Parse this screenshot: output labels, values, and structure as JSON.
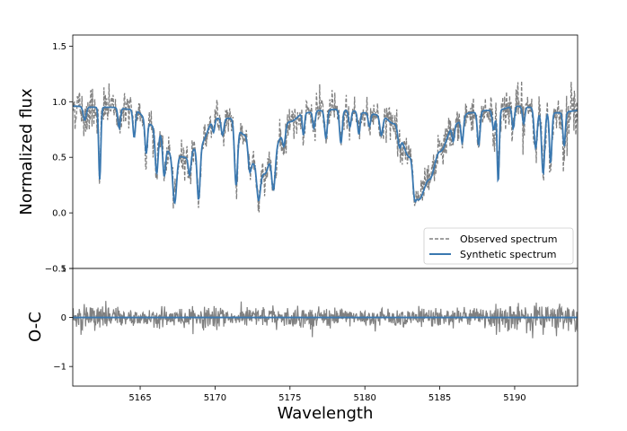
{
  "chart_data": [
    {
      "type": "line",
      "panel": "top",
      "ylabel": "Normalized flux",
      "xlim": [
        5160.5,
        5194.2
      ],
      "ylim": [
        -0.5,
        1.6
      ],
      "yticks": [
        -0.5,
        0.0,
        0.5,
        1.0,
        1.5
      ],
      "ytick_labels": [
        "−0.5",
        "0.0",
        "0.5",
        "1.0",
        "1.5"
      ],
      "legend": {
        "position": "lower-right",
        "entries": [
          {
            "label": "Observed spectrum",
            "style": "dashed",
            "color": "#808080"
          },
          {
            "label": "Synthetic spectrum",
            "style": "solid",
            "color": "#3a78b0"
          }
        ]
      },
      "series": [
        {
          "name": "Synthetic spectrum",
          "color": "#3a78b0",
          "continuum": [
            [
              5160.5,
              0.96
            ],
            [
              5162,
              0.95
            ],
            [
              5163,
              0.95
            ],
            [
              5164.5,
              0.93
            ],
            [
              5166,
              0.78
            ],
            [
              5167,
              0.55
            ],
            [
              5168,
              0.5
            ],
            [
              5169,
              0.62
            ],
            [
              5170,
              0.85
            ],
            [
              5171,
              0.85
            ],
            [
              5172,
              0.7
            ],
            [
              5172.6,
              0.45
            ],
            [
              5173.3,
              0.35
            ],
            [
              5174,
              0.62
            ],
            [
              5175,
              0.82
            ],
            [
              5176,
              0.9
            ],
            [
              5177,
              0.92
            ],
            [
              5178,
              0.93
            ],
            [
              5179,
              0.92
            ],
            [
              5180,
              0.9
            ],
            [
              5181,
              0.88
            ],
            [
              5182,
              0.8
            ],
            [
              5183,
              0.5
            ],
            [
              5183.6,
              0.12
            ],
            [
              5184.3,
              0.3
            ],
            [
              5185,
              0.55
            ],
            [
              5186,
              0.8
            ],
            [
              5187,
              0.9
            ],
            [
              5188,
              0.92
            ],
            [
              5189,
              0.93
            ],
            [
              5190,
              0.96
            ],
            [
              5191,
              0.95
            ],
            [
              5192,
              0.9
            ],
            [
              5193,
              0.9
            ],
            [
              5194.2,
              0.92
            ]
          ],
          "lines": [
            [
              5161.3,
              0.12,
              0.1
            ],
            [
              5162.3,
              0.65,
              0.07
            ],
            [
              5163.6,
              0.18,
              0.08
            ],
            [
              5164.6,
              0.25,
              0.08
            ],
            [
              5165.4,
              0.3,
              0.08
            ],
            [
              5166.1,
              0.42,
              0.1
            ],
            [
              5166.6,
              0.3,
              0.09
            ],
            [
              5167.3,
              0.45,
              0.13
            ],
            [
              5168.3,
              0.18,
              0.09
            ],
            [
              5168.9,
              0.5,
              0.1
            ],
            [
              5169.9,
              0.12,
              0.08
            ],
            [
              5170.5,
              0.15,
              0.09
            ],
            [
              5171.4,
              0.55,
              0.1
            ],
            [
              5172.3,
              0.2,
              0.1
            ],
            [
              5172.9,
              0.3,
              0.12
            ],
            [
              5173.9,
              0.4,
              0.12
            ],
            [
              5174.6,
              0.15,
              0.09
            ],
            [
              5175.9,
              0.2,
              0.07
            ],
            [
              5176.6,
              0.15,
              0.08
            ],
            [
              5177.4,
              0.25,
              0.09
            ],
            [
              5178.4,
              0.3,
              0.09
            ],
            [
              5179.0,
              0.15,
              0.08
            ],
            [
              5179.6,
              0.2,
              0.08
            ],
            [
              5180.3,
              0.12,
              0.08
            ],
            [
              5181.1,
              0.18,
              0.1
            ],
            [
              5182.3,
              0.15,
              0.1
            ],
            [
              5183.3,
              0.18,
              0.1
            ],
            [
              5185.9,
              0.15,
              0.08
            ],
            [
              5186.5,
              0.22,
              0.08
            ],
            [
              5187.6,
              0.3,
              0.09
            ],
            [
              5188.6,
              0.18,
              0.09
            ],
            [
              5188.9,
              0.65,
              0.07
            ],
            [
              5189.9,
              0.2,
              0.08
            ],
            [
              5190.6,
              0.15,
              0.08
            ],
            [
              5191.4,
              0.35,
              0.1
            ],
            [
              5191.9,
              0.55,
              0.1
            ],
            [
              5192.4,
              0.45,
              0.08
            ],
            [
              5193.3,
              0.3,
              0.08
            ]
          ]
        },
        {
          "name": "Observed spectrum",
          "color": "#808080",
          "style": "dashed",
          "noise_sigma": 0.075
        }
      ]
    },
    {
      "type": "line",
      "panel": "bottom",
      "ylabel": "O-C",
      "xlabel": "Wavelength",
      "xlim": [
        5160.5,
        5194.2
      ],
      "ylim": [
        -1.4,
        1.0
      ],
      "yticks": [
        -1,
        0,
        1
      ],
      "ytick_labels": [
        "−1",
        "0",
        "1"
      ],
      "xticks": [
        5165,
        5170,
        5175,
        5180,
        5185,
        5190
      ],
      "xtick_labels": [
        "5165",
        "5170",
        "5175",
        "5180",
        "5185",
        "5190"
      ],
      "series": [
        {
          "name": "residual",
          "color": "#808080",
          "noise_sigma": 0.1
        },
        {
          "name": "zero line",
          "color": "#3a78b0",
          "values": [
            0,
            0
          ]
        }
      ]
    }
  ]
}
